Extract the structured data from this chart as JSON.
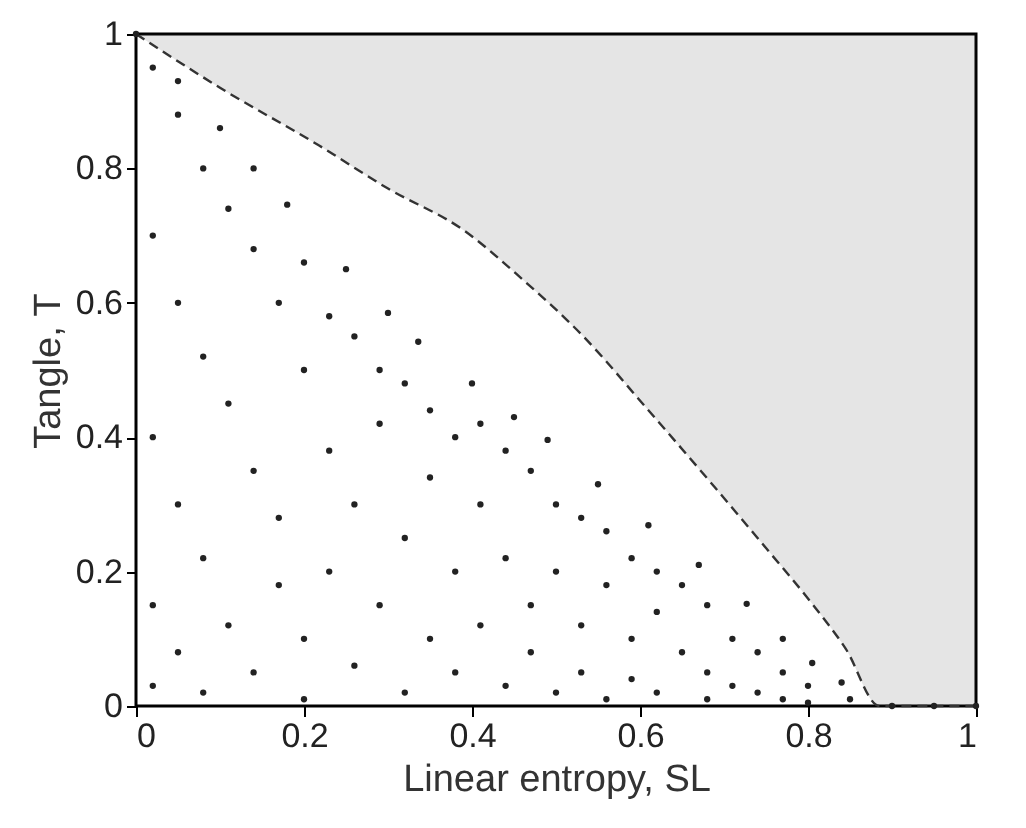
{
  "chart_data": {
    "type": "scatter",
    "xlabel": "Linear entropy, SL",
    "ylabel": "Tangle, T",
    "xlim": [
      0,
      1
    ],
    "ylim": [
      0,
      1
    ],
    "xticks": [
      0,
      0.2,
      0.4,
      0.6,
      0.8,
      1
    ],
    "yticks": [
      0,
      0.2,
      0.4,
      0.6,
      0.8,
      1
    ],
    "grid": false,
    "series": [
      {
        "type": "line",
        "line_style": "dashed",
        "color": "#333333",
        "x": [
          0,
          0.1,
          0.218,
          0.3,
          0.39,
          0.46,
          0.531,
          0.61,
          0.688,
          0.75,
          0.805,
          0.845,
          0.885,
          0.95,
          1
        ],
        "values": [
          1,
          0.92,
          0.834,
          0.77,
          0.708,
          0.635,
          0.552,
          0.44,
          0.327,
          0.235,
          0.152,
          0.085,
          0,
          0,
          0
        ],
        "lower": [
          1,
          0.92,
          0.834,
          0.77,
          0.708,
          0.635,
          0.552,
          0.44,
          0.327,
          0.235,
          0.152,
          0.085,
          0,
          0,
          0
        ],
        "upper": [
          1,
          1,
          1,
          1,
          1,
          1,
          1,
          1,
          1,
          1,
          1,
          1,
          1,
          1,
          1
        ]
      },
      {
        "marker": "circle",
        "color": "#222222",
        "x": [
          0,
          0.05,
          0.1,
          0.14,
          0.18,
          0.25,
          0.3,
          0.336,
          0.4,
          0.45,
          0.49,
          0.55,
          0.61,
          0.67,
          0.727,
          0.77,
          0.805,
          0.84,
          0.9,
          0.95,
          1,
          0.02,
          0.02,
          0.02,
          0.02,
          0.02,
          0.05,
          0.05,
          0.05,
          0.05,
          0.08,
          0.08,
          0.08,
          0.08,
          0.11,
          0.11,
          0.11,
          0.14,
          0.14,
          0.14,
          0.17,
          0.17,
          0.17,
          0.2,
          0.2,
          0.2,
          0.2,
          0.23,
          0.23,
          0.23,
          0.26,
          0.26,
          0.26,
          0.29,
          0.29,
          0.29,
          0.32,
          0.32,
          0.32,
          0.35,
          0.35,
          0.35,
          0.38,
          0.38,
          0.38,
          0.41,
          0.41,
          0.41,
          0.44,
          0.44,
          0.44,
          0.47,
          0.47,
          0.47,
          0.5,
          0.5,
          0.5,
          0.53,
          0.53,
          0.53,
          0.56,
          0.56,
          0.56,
          0.59,
          0.59,
          0.59,
          0.62,
          0.62,
          0.62,
          0.65,
          0.65,
          0.68,
          0.68,
          0.68,
          0.71,
          0.71,
          0.74,
          0.74,
          0.77,
          0.77,
          0.8,
          0.8,
          0.85
        ],
        "values": [
          1,
          0.93,
          0.86,
          0.8,
          0.746,
          0.65,
          0.585,
          0.542,
          0.48,
          0.43,
          0.396,
          0.33,
          0.269,
          0.21,
          0.152,
          0.1,
          0.064,
          0.035,
          0,
          0,
          0,
          0.95,
          0.7,
          0.4,
          0.15,
          0.03,
          0.88,
          0.6,
          0.3,
          0.08,
          0.8,
          0.52,
          0.22,
          0.02,
          0.74,
          0.45,
          0.12,
          0.68,
          0.35,
          0.05,
          0.6,
          0.28,
          0.18,
          0.66,
          0.5,
          0.1,
          0.01,
          0.58,
          0.38,
          0.2,
          0.55,
          0.3,
          0.06,
          0.5,
          0.42,
          0.15,
          0.48,
          0.25,
          0.02,
          0.44,
          0.34,
          0.1,
          0.4,
          0.2,
          0.05,
          0.42,
          0.3,
          0.12,
          0.38,
          0.22,
          0.03,
          0.35,
          0.15,
          0.08,
          0.3,
          0.2,
          0.02,
          0.28,
          0.12,
          0.05,
          0.26,
          0.18,
          0.01,
          0.22,
          0.1,
          0.04,
          0.2,
          0.14,
          0.02,
          0.18,
          0.08,
          0.15,
          0.05,
          0.01,
          0.1,
          0.03,
          0.08,
          0.02,
          0.05,
          0.01,
          0.03,
          0.005,
          0.01
        ]
      }
    ]
  }
}
